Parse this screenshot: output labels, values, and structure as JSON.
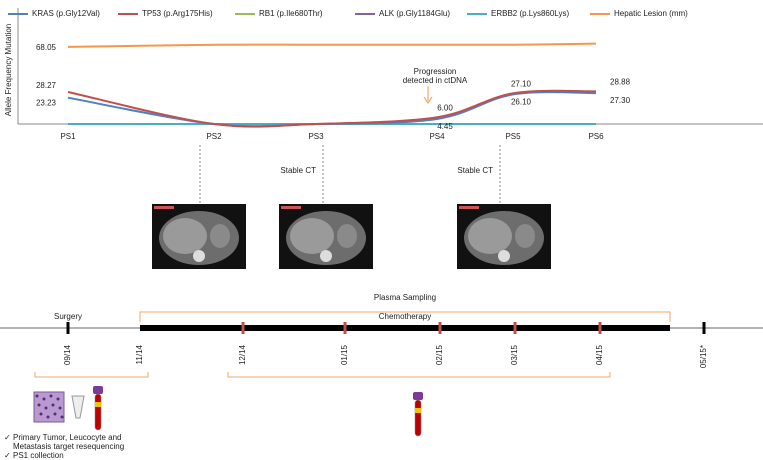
{
  "chart_data": {
    "type": "line",
    "y_label": "Allele Frequency Mutation",
    "categories": [
      "PS1",
      "PS2",
      "PS3",
      "PS4",
      "PS5",
      "PS6"
    ],
    "ylim": [
      0,
      83
    ],
    "series": [
      {
        "name": "KRAS (p.Gly12Val)",
        "color": "#4f81bd",
        "values": [
          23.23,
          0,
          0,
          4.45,
          26.1,
          27.3
        ],
        "value_labels": [
          "23.23",
          null,
          null,
          "4.45",
          "26.10",
          "27.30"
        ]
      },
      {
        "name": "TP53 (p.Arg175His)",
        "color": "#c0504d",
        "values": [
          28.27,
          0,
          0,
          6.0,
          27.1,
          28.88
        ],
        "value_labels": [
          "28.27",
          null,
          null,
          "6.00",
          "27.10",
          "28.88"
        ]
      },
      {
        "name": "RB1 (p.Ile680Thr)",
        "color": "#9bbb59",
        "values": [
          0,
          0,
          0,
          0,
          0,
          0
        ]
      },
      {
        "name": "ALK (p.Gly1184Glu)",
        "color": "#8064a2",
        "values": [
          0,
          0,
          0,
          0,
          0,
          0
        ]
      },
      {
        "name": "ERBB2 (p.Lys860Lys)",
        "color": "#4bacc6",
        "values": [
          0,
          0,
          0,
          0,
          0,
          0
        ]
      },
      {
        "name": "Hepatic Lesion (mm)",
        "color": "#f79646",
        "values": [
          68.05,
          70,
          70,
          70,
          70,
          71
        ],
        "value_labels": [
          "68.05",
          null,
          null,
          null,
          null,
          null
        ]
      }
    ],
    "annotation": [
      "Progression",
      "detected in ctDNA"
    ],
    "ct_label": "Stable CT"
  },
  "timeline": {
    "plasma_label": "Plasma Sampling",
    "therapy_label": "Chemotherapy",
    "surgery_label": "Surgery",
    "dates": [
      "09/14",
      "11/14",
      "12/14",
      "01/15",
      "02/15",
      "03/15",
      "04/15",
      "05/15*"
    ],
    "checklist": [
      [
        "Primary Tumor, Leucocyte and",
        "Metastasis target resequencing"
      ],
      [
        "PS1 collection"
      ]
    ]
  }
}
